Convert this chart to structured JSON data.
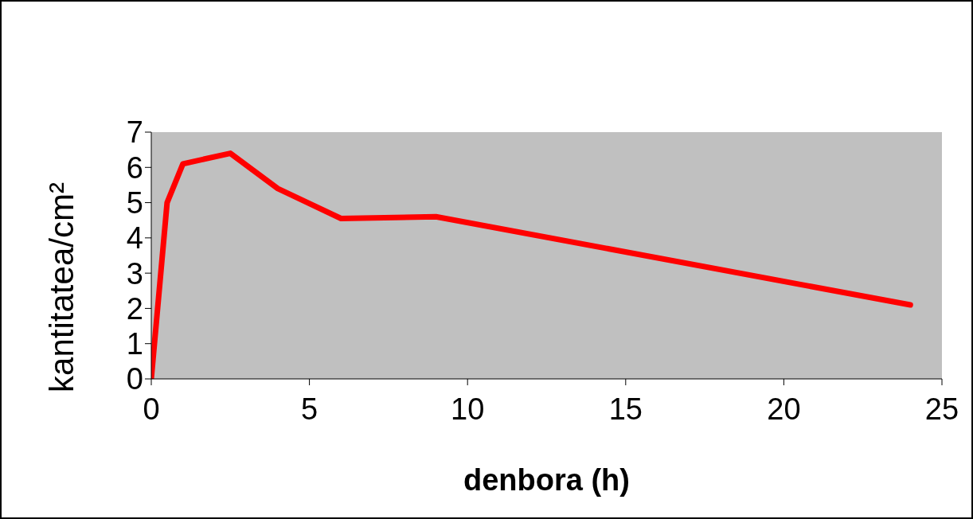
{
  "chart_data": {
    "type": "line",
    "xlabel": "denbora (h)",
    "ylabel": "kantitatea/cm²",
    "x": [
      0,
      0.5,
      1,
      2.5,
      4,
      6,
      9,
      24
    ],
    "series": [
      {
        "color": "#ff0000",
        "values": [
          0,
          5.0,
          6.1,
          6.4,
          5.4,
          4.55,
          4.6,
          2.1
        ]
      }
    ],
    "xlim": [
      0,
      25
    ],
    "xticks": [
      0,
      5,
      10,
      15,
      20,
      25
    ],
    "ylim": [
      0,
      7
    ],
    "yticks": [
      0,
      1,
      2,
      3,
      4,
      5,
      6,
      7
    ],
    "grid": false,
    "marker": "none",
    "line_style": "solid"
  }
}
